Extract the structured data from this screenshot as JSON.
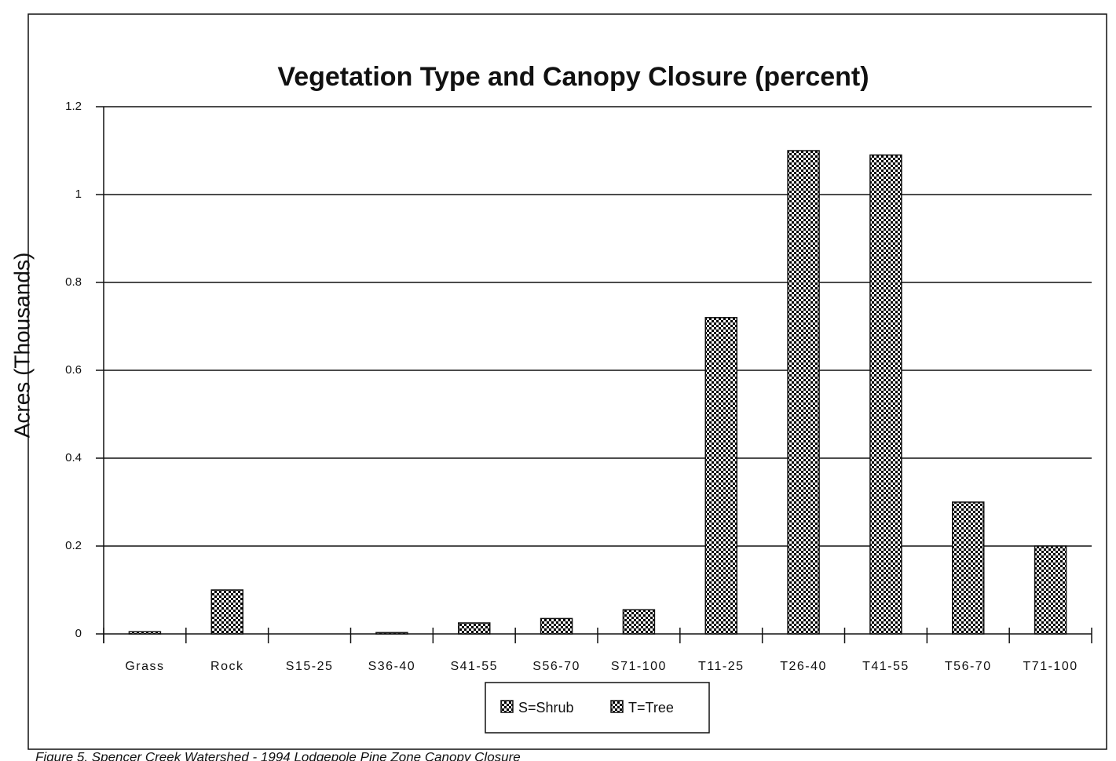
{
  "chart_data": {
    "type": "bar",
    "title": "Vegetation Type and Canopy Closure (percent)",
    "y_label": "Acres (Thousands)",
    "categories": [
      "Grass",
      "Rock",
      "S15-25",
      "S36-40",
      "S41-55",
      "S56-70",
      "S71-100",
      "T11-25",
      "T26-40",
      "T41-55",
      "T56-70",
      "T71-100"
    ],
    "values": [
      0.005,
      0.1,
      0,
      0.003,
      0.025,
      0.035,
      0.055,
      0.72,
      1.1,
      1.09,
      0.3,
      0.2
    ],
    "color": "#000000",
    "ylim": [
      0,
      1.2
    ],
    "yticks": [
      0,
      0.2,
      0.4,
      0.6,
      0.8,
      1,
      1.2
    ],
    "grid": true,
    "legend": [
      "S=Shrub",
      "T=Tree"
    ],
    "caption": "Figure 5.  Spencer Creek Watershed - 1994 Lodgepole Pine Zone Canopy Closure"
  }
}
